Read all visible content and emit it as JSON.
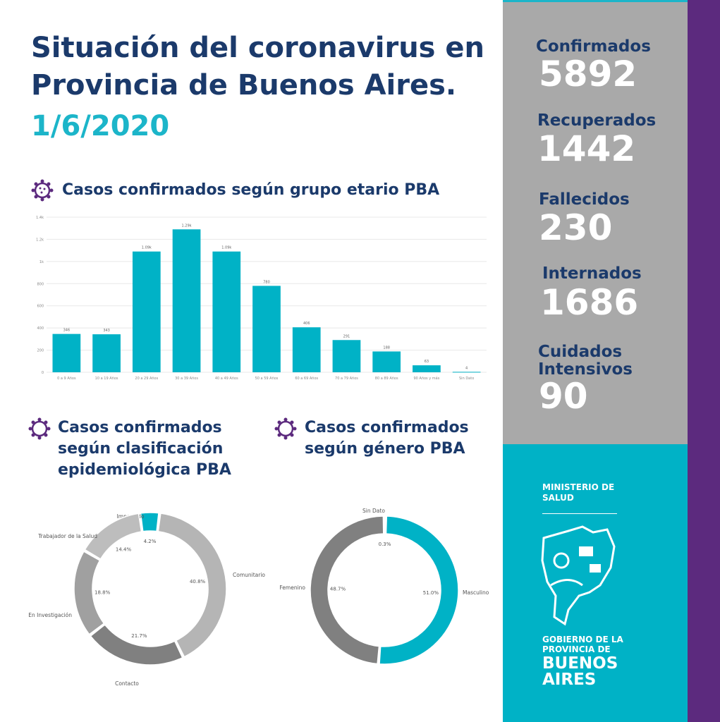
{
  "header": {
    "title_line1": "Situación del coronavirus en",
    "title_line2": "Provincia de Buenos Aires.",
    "date": "1/6/2020"
  },
  "sections": {
    "age": "Casos confirmados según grupo etario PBA",
    "epi_line1": "Casos confirmados",
    "epi_line2": "según clasificación",
    "epi_line3": "epidemiológica PBA",
    "gender_line1": "Casos confirmados",
    "gender_line2": "según género PBA"
  },
  "stats": [
    {
      "label": "Confirmados",
      "value": "5892"
    },
    {
      "label": "Recuperados",
      "value": "1442"
    },
    {
      "label": "Fallecidos",
      "value": "230"
    },
    {
      "label": "Internados",
      "value": "1686"
    },
    {
      "label": "Cuidados Intensivos",
      "value": "90"
    }
  ],
  "branding": {
    "ministry_line1": "MINISTERIO DE",
    "ministry_line2": "SALUD",
    "gov_line1": "GOBIERNO DE LA",
    "gov_line2": "PROVINCIA DE",
    "gov_line3": "BUENOS",
    "gov_line4": "AIRES"
  },
  "colors": {
    "teal": "#00b2c6",
    "navy": "#1b3a6b",
    "purple": "#5c2a7e",
    "gray": "#a9a9a9"
  },
  "chart_data": [
    {
      "type": "bar",
      "title": "Casos confirmados según grupo etario PBA",
      "categories": [
        "0 a 9 Años",
        "10 a 19 Años",
        "20 a 29 Años",
        "30 a 39 Años",
        "40 a 49 Años",
        "50 a 59 Años",
        "60 a 69 Años",
        "70 a 79 Años",
        "80 a 89 Años",
        "90 Años y más",
        "Sin Dato"
      ],
      "values": [
        346,
        343,
        1090,
        1290,
        1090,
        780,
        406,
        291,
        188,
        63,
        4
      ],
      "labels": [
        "346",
        "343",
        "1.09k",
        "1.29k",
        "1.09k",
        "780",
        "406",
        "291",
        "188",
        "63",
        "4"
      ],
      "yticks": [
        "0",
        "200",
        "400",
        "600",
        "800",
        "1k",
        "1.2k",
        "1.4k"
      ],
      "ylim": [
        0,
        1400
      ],
      "grid": true
    },
    {
      "type": "pie",
      "title": "Casos confirmados según clasificación epidemiológica PBA",
      "slices": [
        {
          "name": "Importado",
          "value": 4.2,
          "label": "4.2%",
          "color": "#00b2c6"
        },
        {
          "name": "Comunitario",
          "value": 40.8,
          "label": "40.8%",
          "color": "#b5b5b5"
        },
        {
          "name": "Contacto",
          "value": 21.7,
          "label": "21.7%",
          "color": "#808080"
        },
        {
          "name": "En Investigación",
          "value": 18.8,
          "label": "18.8%",
          "color": "#a0a0a0"
        },
        {
          "name": "Trabajador de la Salud",
          "value": 14.4,
          "label": "14.4%",
          "color": "#bdbdbd"
        }
      ]
    },
    {
      "type": "pie",
      "title": "Casos confirmados según género PBA",
      "slices": [
        {
          "name": "Masculino",
          "value": 51.0,
          "label": "51.0%",
          "color": "#00b2c6"
        },
        {
          "name": "Femenino",
          "value": 48.7,
          "label": "48.7%",
          "color": "#808080"
        },
        {
          "name": "Sin Dato",
          "value": 0.3,
          "label": "0.3%",
          "color": "#a0a0a0"
        }
      ]
    }
  ]
}
